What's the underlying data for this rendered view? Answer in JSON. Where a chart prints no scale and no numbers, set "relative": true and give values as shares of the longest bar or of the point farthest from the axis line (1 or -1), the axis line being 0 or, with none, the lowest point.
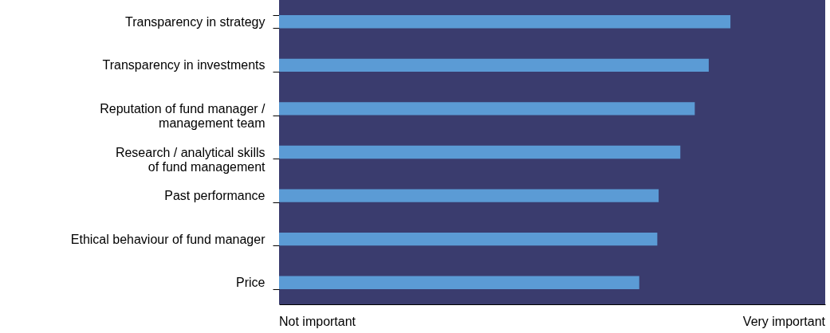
{
  "chart_data": {
    "type": "bar",
    "orientation": "horizontal",
    "relative": true,
    "categories": [
      "Transparency in strategy",
      "Transparency in investments",
      "Reputation of fund manager /\nmanagement team",
      "Research / analytical skills\nof fund management",
      "Past performance",
      "Ethical behaviour of fund manager",
      "Price"
    ],
    "values": [
      1,
      0.952,
      0.921,
      0.889,
      0.841,
      0.838,
      0.798
    ],
    "color": "#5b9bd5",
    "annotations": [
      "Not important",
      "Very important"
    ]
  }
}
